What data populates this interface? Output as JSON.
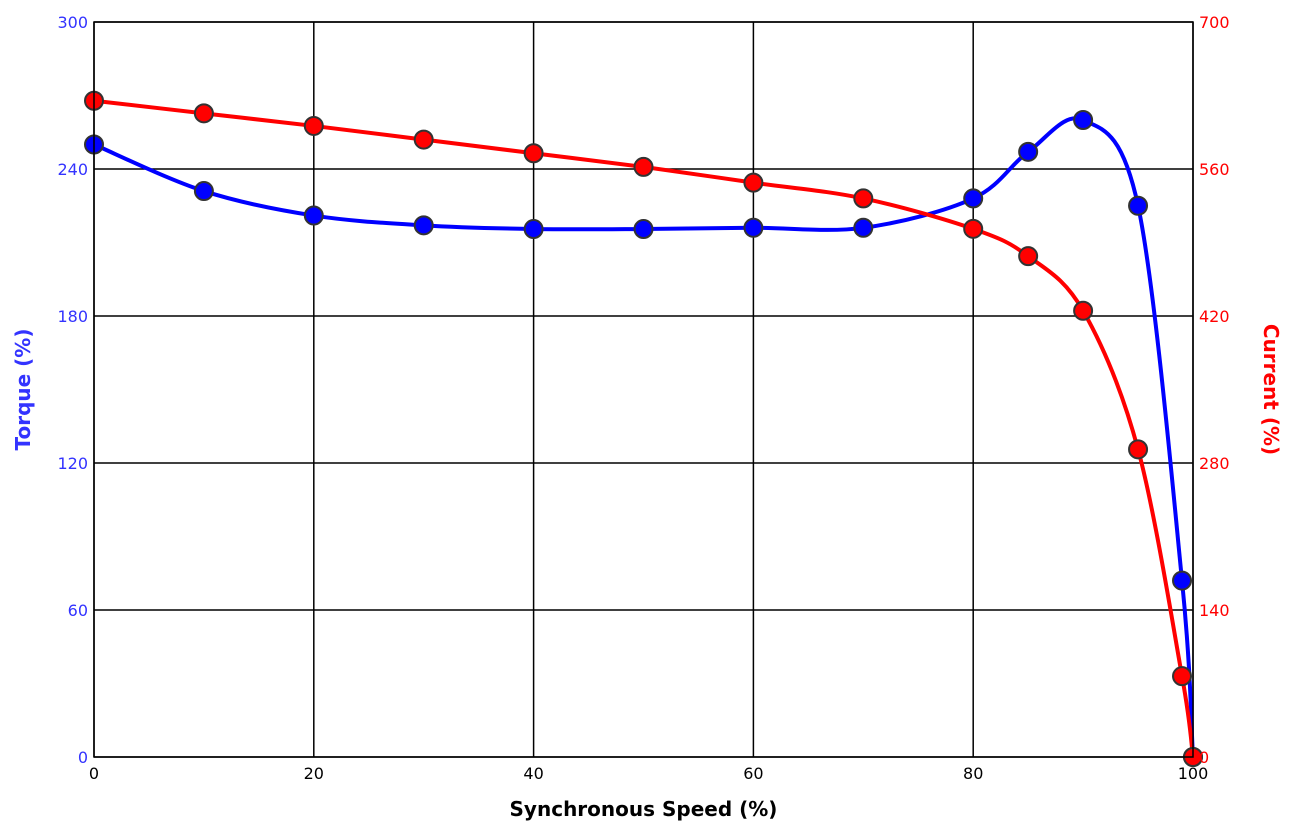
{
  "chart_data": {
    "type": "line",
    "title": "",
    "xlabel": "Synchronous Speed (%)",
    "ylabel_left": "Torque (%)",
    "ylabel_right": "Current (%)",
    "xlim": [
      0,
      100
    ],
    "ylim_left": [
      0,
      300
    ],
    "ylim_right": [
      0,
      700
    ],
    "x_ticks": [
      "0",
      "20",
      "40",
      "60",
      "80",
      "100"
    ],
    "y_ticks_left": [
      "0",
      "60",
      "120",
      "180",
      "240",
      "300"
    ],
    "y_ticks_right": [
      "0",
      "140",
      "280",
      "420",
      "560",
      "700"
    ],
    "grid": true,
    "legend": "none",
    "series": [
      {
        "axis": "left",
        "color": "#0000ff",
        "points": [
          [
            0,
            250
          ],
          [
            10,
            231
          ],
          [
            20,
            221
          ],
          [
            30,
            217
          ],
          [
            40,
            215.5
          ],
          [
            50,
            215.5
          ],
          [
            60,
            216
          ],
          [
            70,
            216
          ],
          [
            80,
            228
          ],
          [
            85,
            247
          ],
          [
            90,
            260
          ],
          [
            95,
            225
          ],
          [
            99,
            72
          ],
          [
            100,
            0
          ]
        ]
      },
      {
        "axis": "right",
        "color": "#ff0000",
        "points": [
          [
            0,
            625
          ],
          [
            10,
            613
          ],
          [
            20,
            601
          ],
          [
            30,
            588
          ],
          [
            40,
            575
          ],
          [
            50,
            562
          ],
          [
            60,
            547
          ],
          [
            70,
            532
          ],
          [
            80,
            503
          ],
          [
            85,
            477
          ],
          [
            90,
            425
          ],
          [
            95,
            293
          ],
          [
            99,
            77
          ],
          [
            100,
            0
          ]
        ]
      }
    ]
  }
}
